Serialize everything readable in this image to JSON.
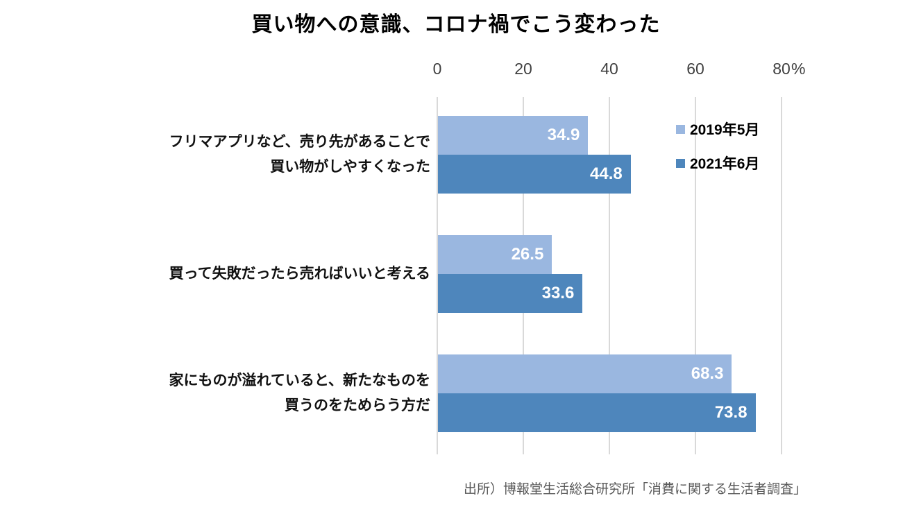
{
  "title": "買い物への意識、コロナ禍でこう変わった",
  "source": "出所）博報堂生活総合研究所「消費に関する生活者調査」",
  "colors": {
    "series_2019": "#9AB7E0",
    "series_2021": "#4E86BC",
    "gridline": "#D9D9D9",
    "axis_text": "#404040",
    "data_label_text": "#FFFFFF",
    "source_text": "#595959"
  },
  "chart_data": {
    "type": "bar",
    "orientation": "horizontal",
    "title": "買い物への意識、コロナ禍でこう変わった",
    "unit": "%",
    "categories": [
      "フリマアプリなど、売り先があることで\n買い物がしやすくなった",
      "買って失敗だったら売ればいいと考える",
      "家にものが溢れていると、新たなものを\n買うのをためらう方だ"
    ],
    "series": [
      {
        "name": "2019年5月",
        "color": "#9AB7E0",
        "values": [
          34.9,
          26.5,
          68.3
        ]
      },
      {
        "name": "2021年6月",
        "color": "#4E86BC",
        "values": [
          44.8,
          33.6,
          73.8
        ]
      }
    ],
    "x_axis": {
      "ticks": [
        0,
        20,
        40,
        60,
        80
      ],
      "min": 0,
      "max": 80,
      "unit_label": "%",
      "position": "top"
    },
    "grid": true,
    "data_labels": true,
    "legend_position": "top-right",
    "source": "出所）博報堂生活総合研究所「消費に関する生活者調査」"
  }
}
